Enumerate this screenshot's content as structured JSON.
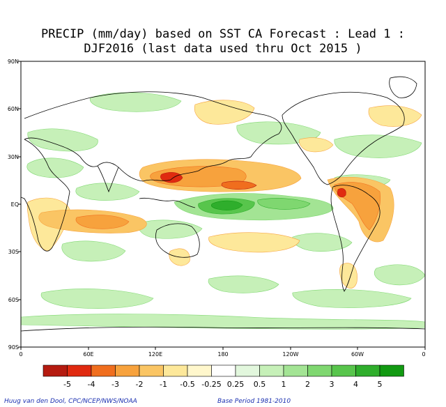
{
  "title_line1": "PRECIP (mm/day) based on SST CA Forecast : Lead 1 :",
  "title_line2": "DJF2016 (last data used thru Oct 2015 )",
  "lat_labels": [
    "90N",
    "60N",
    "30N",
    "EQ",
    "30S",
    "60S",
    "90S"
  ],
  "lon_labels": [
    "0",
    "60E",
    "120E",
    "180",
    "120W",
    "60W",
    "0"
  ],
  "colorbar": {
    "colors": [
      "#b51b10",
      "#e02a10",
      "#f06e1e",
      "#f7a23d",
      "#fac564",
      "#fde89a",
      "#fff7cc",
      "#ffffff",
      "#e2f7dd",
      "#c6f0b8",
      "#a3e494",
      "#7fd770",
      "#58c54c",
      "#2fae2c",
      "#129a12"
    ],
    "labels": [
      "-5",
      "-4",
      "-3",
      "-2",
      "-1",
      "-0.5",
      "-0.25",
      "0.25",
      "0.5",
      "1",
      "2",
      "3",
      "4",
      "5"
    ]
  },
  "footer_left": "Huug van den Dool, CPC/NCEP/NWS/NOAA",
  "footer_right": "Base Period 1981-2010"
}
